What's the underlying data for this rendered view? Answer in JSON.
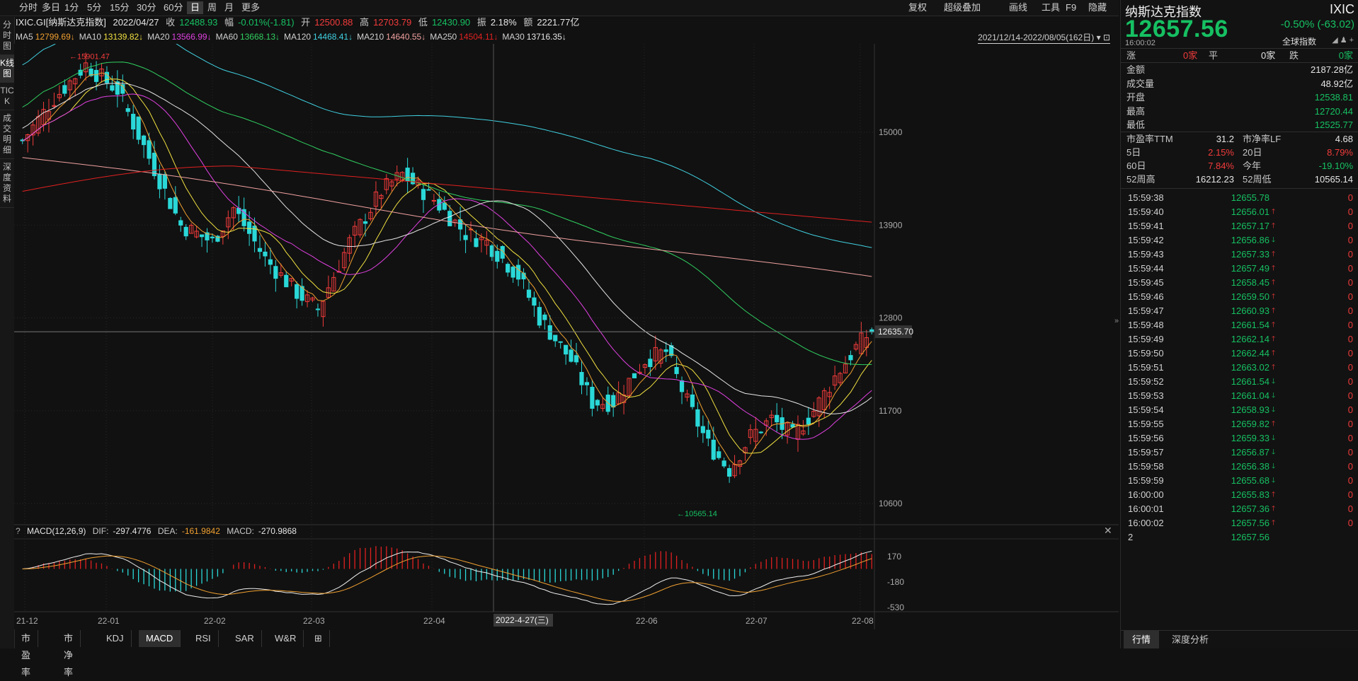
{
  "toolbar": {
    "periods": [
      "分时",
      "多日",
      "1分",
      "5分",
      "15分",
      "30分",
      "60分",
      "日",
      "周",
      "月",
      "更多"
    ],
    "active_period": "日",
    "right_tools": [
      "复权",
      "超级叠加",
      "画线",
      "工具",
      "F9",
      "隐藏"
    ]
  },
  "vtabs": [
    "分时图",
    "K线图",
    "TICK",
    "成交明细",
    "深度资料"
  ],
  "vtab_active": "K线图",
  "info": {
    "code_name": "IXIC.GI[纳斯达克指数]",
    "date": "2022/04/27",
    "close_label": "收",
    "close": "12488.93",
    "range_label": "幅",
    "range": "-0.01%(-1.81)",
    "open_label": "开",
    "open": "12500.88",
    "high_label": "高",
    "high": "12703.79",
    "low_label": "低",
    "low": "12430.90",
    "amp_label": "振",
    "amp": "2.18%",
    "amount_label": "额",
    "amount": "2221.77亿"
  },
  "ma_line": [
    {
      "label": "MA5",
      "value": "12799.69↓",
      "color": "#f0a030"
    },
    {
      "label": "MA10",
      "value": "13139.82↓",
      "color": "#f0e040"
    },
    {
      "label": "MA20",
      "value": "13566.99↓",
      "color": "#e040e0"
    },
    {
      "label": "MA60",
      "value": "13668.13↓",
      "color": "#30d060"
    },
    {
      "label": "MA120",
      "value": "14468.41↓",
      "color": "#40d0e0"
    },
    {
      "label": "MA210",
      "value": "14640.55↓",
      "color": "#f0a0a0"
    },
    {
      "label": "MA250",
      "value": "14504.11↓",
      "color": "#e02020"
    },
    {
      "label": "MA30",
      "value": "13716.35↓",
      "color": "#e6e6e6"
    }
  ],
  "date_range": "2021/12/14-2022/08/05(162日)",
  "chart": {
    "y_ticks": [
      "15000",
      "13900",
      "12800",
      "11700",
      "10600"
    ],
    "current_price_label": "12635.70",
    "high_mark": "15901.47",
    "low_mark": "10565.14",
    "x_ticks": [
      "21-12",
      "22-01",
      "22-02",
      "22-03",
      "22-04",
      "22-06",
      "22-07",
      "22-08"
    ],
    "crosshair_date": "2022-4-27(三)",
    "colors": {
      "up": "#f23b3b",
      "down": "#2ad8d8",
      "bg": "#111111",
      "grid": "#262626"
    }
  },
  "macd": {
    "title": "MACD(12,26,9)",
    "dif_label": "DIF:",
    "dif": "-297.4776",
    "dea_label": "DEA:",
    "dea": "-161.9842",
    "macd_label": "MACD:",
    "macd": "-270.9868",
    "y_ticks": [
      "170",
      "-180",
      "-530"
    ]
  },
  "bottom_tabs": [
    "市盈率",
    "市净率",
    "KDJ",
    "MACD",
    "RSI",
    "SAR",
    "W&R"
  ],
  "bottom_active": "MACD",
  "quote": {
    "name": "纳斯达克指数",
    "code": "IXIC",
    "price": "12657.56",
    "change": "-0.50% (-63.02)",
    "time": "16:00:02",
    "global_index": "全球指数",
    "rise_label": "涨",
    "rise": "0家",
    "flat_label": "平",
    "flat": "0家",
    "fall_label": "跌",
    "fall": "0家",
    "stats": [
      {
        "label": "金额",
        "value": "2187.28亿",
        "cls": "wh"
      },
      {
        "label": "成交量",
        "value": "48.92亿",
        "cls": "wh"
      },
      {
        "label": "开盘",
        "value": "12538.81",
        "cls": "dn"
      },
      {
        "label": "最高",
        "value": "12720.44",
        "cls": "dn"
      },
      {
        "label": "最低",
        "value": "12525.77",
        "cls": "dn"
      }
    ],
    "pe_label": "市盈率TTM",
    "pe": "31.2",
    "pb_label": "市净率LF",
    "pb": "4.68",
    "d5_label": "5日",
    "d5": "2.15%",
    "d20_label": "20日",
    "d20": "8.79%",
    "d60_label": "60日",
    "d60": "7.84%",
    "ytd_label": "今年",
    "ytd": "-19.10%",
    "w52h_label": "52周高",
    "w52h": "16212.23",
    "w52l_label": "52周低",
    "w52l": "10565.14"
  },
  "ticks": [
    {
      "t": "15:59:38",
      "p": "12655.78",
      "a": "",
      "v": "0"
    },
    {
      "t": "15:59:40",
      "p": "12656.01",
      "a": "up",
      "v": "0"
    },
    {
      "t": "15:59:41",
      "p": "12657.17",
      "a": "up",
      "v": "0"
    },
    {
      "t": "15:59:42",
      "p": "12656.86",
      "a": "dn",
      "v": "0"
    },
    {
      "t": "15:59:43",
      "p": "12657.33",
      "a": "up",
      "v": "0"
    },
    {
      "t": "15:59:44",
      "p": "12657.49",
      "a": "up",
      "v": "0"
    },
    {
      "t": "15:59:45",
      "p": "12658.45",
      "a": "up",
      "v": "0"
    },
    {
      "t": "15:59:46",
      "p": "12659.50",
      "a": "up",
      "v": "0"
    },
    {
      "t": "15:59:47",
      "p": "12660.93",
      "a": "up",
      "v": "0"
    },
    {
      "t": "15:59:48",
      "p": "12661.54",
      "a": "up",
      "v": "0"
    },
    {
      "t": "15:59:49",
      "p": "12662.14",
      "a": "up",
      "v": "0"
    },
    {
      "t": "15:59:50",
      "p": "12662.44",
      "a": "up",
      "v": "0"
    },
    {
      "t": "15:59:51",
      "p": "12663.02",
      "a": "up",
      "v": "0"
    },
    {
      "t": "15:59:52",
      "p": "12661.54",
      "a": "dn",
      "v": "0"
    },
    {
      "t": "15:59:53",
      "p": "12661.04",
      "a": "dn",
      "v": "0"
    },
    {
      "t": "15:59:54",
      "p": "12658.93",
      "a": "dn",
      "v": "0"
    },
    {
      "t": "15:59:55",
      "p": "12659.82",
      "a": "up",
      "v": "0"
    },
    {
      "t": "15:59:56",
      "p": "12659.33",
      "a": "dn",
      "v": "0"
    },
    {
      "t": "15:59:57",
      "p": "12656.87",
      "a": "dn",
      "v": "0"
    },
    {
      "t": "15:59:58",
      "p": "12656.38",
      "a": "dn",
      "v": "0"
    },
    {
      "t": "15:59:59",
      "p": "12655.68",
      "a": "dn",
      "v": "0"
    },
    {
      "t": "16:00:00",
      "p": "12655.83",
      "a": "up",
      "v": "0"
    },
    {
      "t": "16:00:01",
      "p": "12657.36",
      "a": "up",
      "v": "0"
    },
    {
      "t": "16:00:02",
      "p": "12657.56",
      "a": "up",
      "v": "0"
    },
    {
      "t": "2",
      "p": "12657.56",
      "a": "",
      "v": ""
    }
  ],
  "right_bottom_tabs": [
    "行情",
    "深度分析"
  ],
  "right_bottom_active": "行情",
  "icons": {
    "close": "close-icon",
    "dropdown": "chevron-down-icon",
    "collapse": "chevron-right-icon",
    "question": "question-icon",
    "add": "plus-icon"
  }
}
